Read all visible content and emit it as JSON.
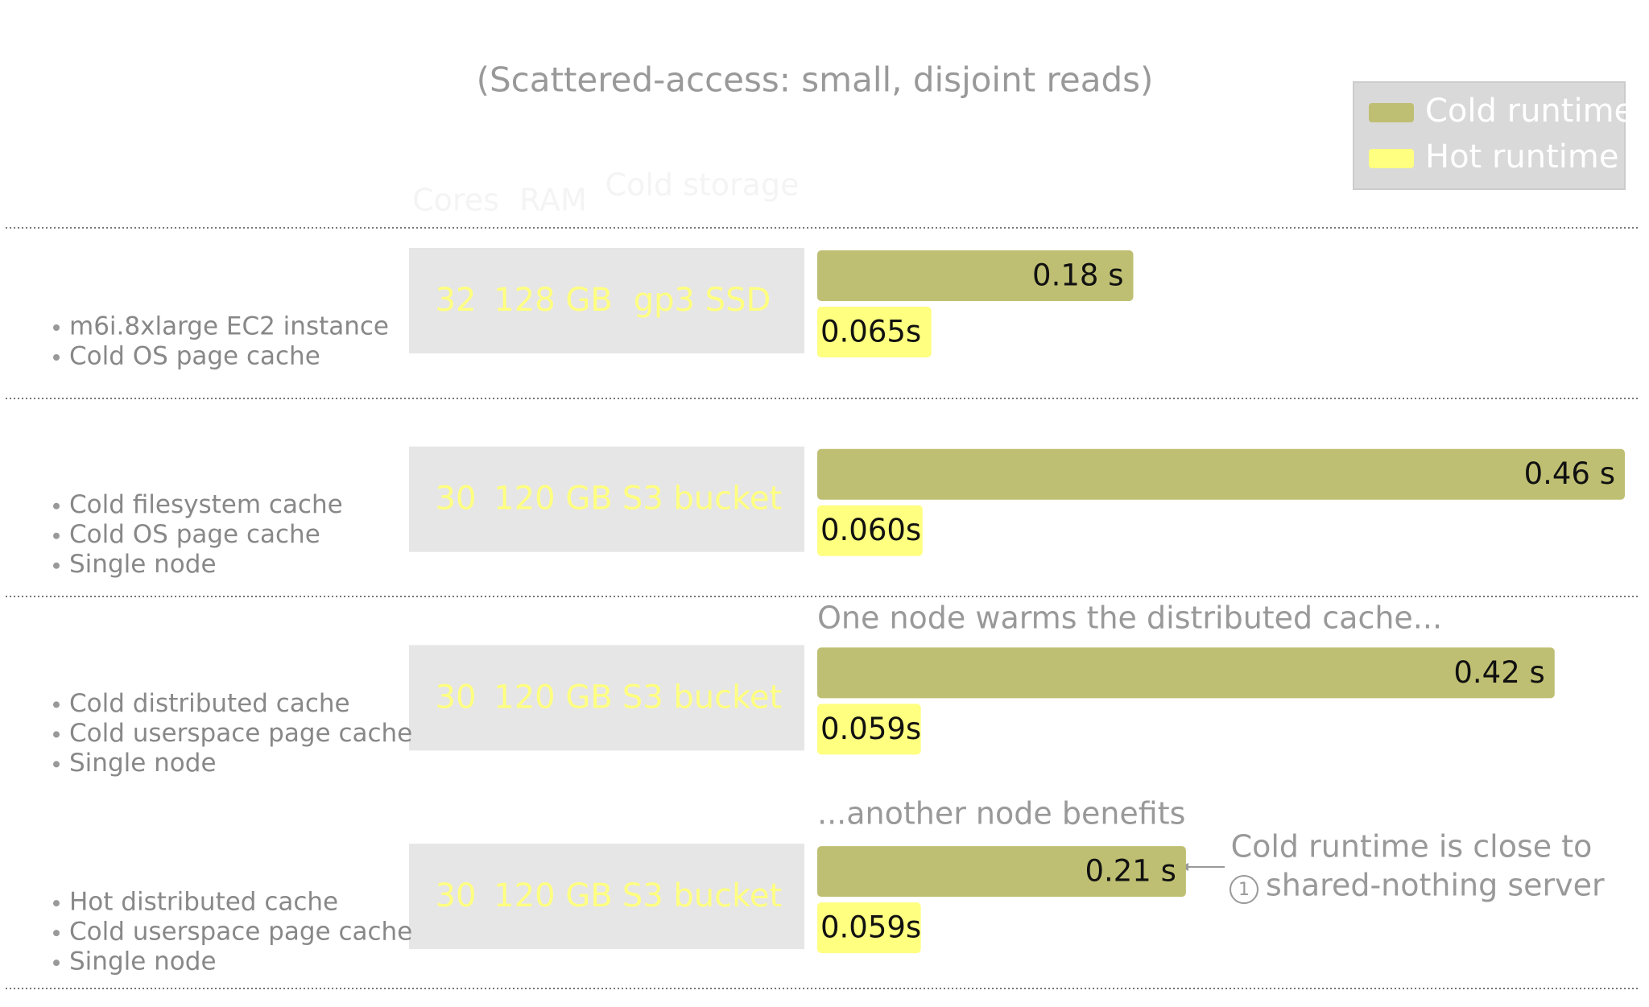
{
  "chart_data": {
    "type": "bar",
    "subtitle": "(Scattered-access: small, disjoint reads)",
    "columns": [
      "Cores",
      "RAM",
      "Cold storage"
    ],
    "legend": "top-right",
    "rows": [
      {
        "notes": [
          "m6i.8xlarge EC2 instance",
          "Cold OS page cache"
        ],
        "specs": [
          32,
          "128 GB",
          "gp3 SSD"
        ]
      },
      {
        "notes": [
          "Cold filesystem cache",
          "Cold OS page cache",
          "Single node"
        ],
        "specs": [
          30,
          "120 GB",
          "S3 bucket"
        ]
      },
      {
        "notes": [
          "Cold distributed cache",
          "Cold userspace page cache",
          "Single node"
        ],
        "specs": [
          30,
          "120 GB",
          "S3 bucket"
        ]
      },
      {
        "notes": [
          "Hot distributed cache",
          "Cold userspace page cache",
          "Single node"
        ],
        "specs": [
          30,
          "120 GB",
          "S3 bucket"
        ]
      }
    ],
    "series": [
      {
        "name": "Cold runtime",
        "color": "#bfbf73",
        "values": [
          0.18,
          0.46,
          0.42,
          0.21
        ],
        "value_labels": [
          "0.18 s",
          "0.46 s",
          "0.42 s",
          "0.21 s"
        ]
      },
      {
        "name": "Hot runtime",
        "color": "#ffff80",
        "values": [
          0.065,
          0.06,
          0.059,
          0.059
        ],
        "value_labels": [
          "0.065s",
          "0.060s",
          "0.059s",
          "0.059s"
        ]
      }
    ],
    "annotations": [
      "One node warms the distributed cache...",
      "...another node benefits"
    ],
    "note": [
      "Cold runtime is close to",
      "shared-nothing server"
    ]
  }
}
